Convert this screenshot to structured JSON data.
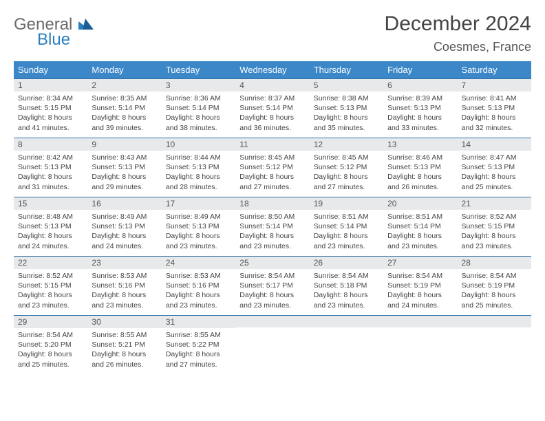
{
  "brand": {
    "line1": "General",
    "line2": "Blue",
    "color_gray": "#6a6a6a",
    "color_blue": "#2a7fbf"
  },
  "title": "December 2024",
  "location": "Coesmes, France",
  "columns": [
    "Sunday",
    "Monday",
    "Tuesday",
    "Wednesday",
    "Thursday",
    "Friday",
    "Saturday"
  ],
  "header_bg": "#3b87c8",
  "header_fg": "#ffffff",
  "row_border": "#2f6fa8",
  "daynum_bg": "#e7e9eb",
  "background": "#ffffff",
  "title_fontsize": 30,
  "location_fontsize": 18,
  "header_fontsize": 13,
  "daynum_fontsize": 12,
  "body_fontsize": 10.5,
  "weeks": [
    [
      {
        "n": 1,
        "sr": "8:34 AM",
        "ss": "5:15 PM",
        "dl": "8 hours and 41 minutes."
      },
      {
        "n": 2,
        "sr": "8:35 AM",
        "ss": "5:14 PM",
        "dl": "8 hours and 39 minutes."
      },
      {
        "n": 3,
        "sr": "8:36 AM",
        "ss": "5:14 PM",
        "dl": "8 hours and 38 minutes."
      },
      {
        "n": 4,
        "sr": "8:37 AM",
        "ss": "5:14 PM",
        "dl": "8 hours and 36 minutes."
      },
      {
        "n": 5,
        "sr": "8:38 AM",
        "ss": "5:13 PM",
        "dl": "8 hours and 35 minutes."
      },
      {
        "n": 6,
        "sr": "8:39 AM",
        "ss": "5:13 PM",
        "dl": "8 hours and 33 minutes."
      },
      {
        "n": 7,
        "sr": "8:41 AM",
        "ss": "5:13 PM",
        "dl": "8 hours and 32 minutes."
      }
    ],
    [
      {
        "n": 8,
        "sr": "8:42 AM",
        "ss": "5:13 PM",
        "dl": "8 hours and 31 minutes."
      },
      {
        "n": 9,
        "sr": "8:43 AM",
        "ss": "5:13 PM",
        "dl": "8 hours and 29 minutes."
      },
      {
        "n": 10,
        "sr": "8:44 AM",
        "ss": "5:13 PM",
        "dl": "8 hours and 28 minutes."
      },
      {
        "n": 11,
        "sr": "8:45 AM",
        "ss": "5:12 PM",
        "dl": "8 hours and 27 minutes."
      },
      {
        "n": 12,
        "sr": "8:45 AM",
        "ss": "5:12 PM",
        "dl": "8 hours and 27 minutes."
      },
      {
        "n": 13,
        "sr": "8:46 AM",
        "ss": "5:13 PM",
        "dl": "8 hours and 26 minutes."
      },
      {
        "n": 14,
        "sr": "8:47 AM",
        "ss": "5:13 PM",
        "dl": "8 hours and 25 minutes."
      }
    ],
    [
      {
        "n": 15,
        "sr": "8:48 AM",
        "ss": "5:13 PM",
        "dl": "8 hours and 24 minutes."
      },
      {
        "n": 16,
        "sr": "8:49 AM",
        "ss": "5:13 PM",
        "dl": "8 hours and 24 minutes."
      },
      {
        "n": 17,
        "sr": "8:49 AM",
        "ss": "5:13 PM",
        "dl": "8 hours and 23 minutes."
      },
      {
        "n": 18,
        "sr": "8:50 AM",
        "ss": "5:14 PM",
        "dl": "8 hours and 23 minutes."
      },
      {
        "n": 19,
        "sr": "8:51 AM",
        "ss": "5:14 PM",
        "dl": "8 hours and 23 minutes."
      },
      {
        "n": 20,
        "sr": "8:51 AM",
        "ss": "5:14 PM",
        "dl": "8 hours and 23 minutes."
      },
      {
        "n": 21,
        "sr": "8:52 AM",
        "ss": "5:15 PM",
        "dl": "8 hours and 23 minutes."
      }
    ],
    [
      {
        "n": 22,
        "sr": "8:52 AM",
        "ss": "5:15 PM",
        "dl": "8 hours and 23 minutes."
      },
      {
        "n": 23,
        "sr": "8:53 AM",
        "ss": "5:16 PM",
        "dl": "8 hours and 23 minutes."
      },
      {
        "n": 24,
        "sr": "8:53 AM",
        "ss": "5:16 PM",
        "dl": "8 hours and 23 minutes."
      },
      {
        "n": 25,
        "sr": "8:54 AM",
        "ss": "5:17 PM",
        "dl": "8 hours and 23 minutes."
      },
      {
        "n": 26,
        "sr": "8:54 AM",
        "ss": "5:18 PM",
        "dl": "8 hours and 23 minutes."
      },
      {
        "n": 27,
        "sr": "8:54 AM",
        "ss": "5:19 PM",
        "dl": "8 hours and 24 minutes."
      },
      {
        "n": 28,
        "sr": "8:54 AM",
        "ss": "5:19 PM",
        "dl": "8 hours and 25 minutes."
      }
    ],
    [
      {
        "n": 29,
        "sr": "8:54 AM",
        "ss": "5:20 PM",
        "dl": "8 hours and 25 minutes."
      },
      {
        "n": 30,
        "sr": "8:55 AM",
        "ss": "5:21 PM",
        "dl": "8 hours and 26 minutes."
      },
      {
        "n": 31,
        "sr": "8:55 AM",
        "ss": "5:22 PM",
        "dl": "8 hours and 27 minutes."
      },
      null,
      null,
      null,
      null
    ]
  ],
  "labels": {
    "sunrise": "Sunrise:",
    "sunset": "Sunset:",
    "daylight": "Daylight:"
  }
}
